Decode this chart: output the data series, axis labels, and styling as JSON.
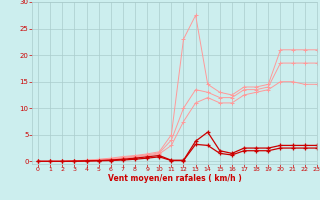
{
  "x_values": [
    0,
    1,
    2,
    3,
    4,
    5,
    6,
    7,
    8,
    9,
    10,
    11,
    12,
    13,
    14,
    15,
    16,
    17,
    18,
    19,
    20,
    21,
    22,
    23
  ],
  "line1": [
    0,
    0,
    0,
    0.1,
    0.2,
    0.4,
    0.6,
    0.9,
    1.1,
    1.4,
    1.8,
    5.0,
    23.0,
    27.5,
    14.5,
    13.0,
    12.5,
    14.0,
    14.0,
    14.5,
    21.0,
    21.0,
    21.0,
    21.0
  ],
  "line2": [
    0,
    0,
    0,
    0.1,
    0.2,
    0.3,
    0.5,
    0.7,
    1.0,
    1.2,
    1.6,
    4.0,
    10.0,
    13.5,
    13.0,
    12.0,
    12.0,
    13.5,
    13.5,
    14.0,
    18.5,
    18.5,
    18.5,
    18.5
  ],
  "line3": [
    0,
    0,
    0,
    0.1,
    0.15,
    0.25,
    0.4,
    0.6,
    0.85,
    1.1,
    1.4,
    3.0,
    7.5,
    11.0,
    12.0,
    11.0,
    11.0,
    12.5,
    13.0,
    13.5,
    15.0,
    15.0,
    14.5,
    14.5
  ],
  "line4": [
    0,
    0,
    0,
    0.05,
    0.1,
    0.15,
    0.25,
    0.4,
    0.6,
    0.85,
    1.1,
    0.2,
    0.2,
    3.8,
    5.5,
    2.0,
    1.5,
    2.5,
    2.5,
    2.5,
    3.0,
    3.0,
    3.0,
    3.0
  ],
  "line5": [
    0,
    0,
    0,
    0.0,
    0.05,
    0.1,
    0.15,
    0.25,
    0.4,
    0.6,
    0.85,
    0.15,
    0.15,
    3.2,
    3.0,
    1.5,
    1.2,
    2.0,
    2.0,
    2.0,
    2.5,
    2.5,
    2.5,
    2.5
  ],
  "color_light": "#FF9999",
  "color_dark": "#CC0000",
  "bg_color": "#CCEEEE",
  "grid_color": "#AACCCC",
  "xlabel": "Vent moyen/en rafales ( km/h )",
  "xlabel_color": "#CC0000",
  "tick_color": "#CC0000",
  "ylim": [
    -0.5,
    30
  ],
  "xlim": [
    -0.5,
    23
  ],
  "yticks": [
    0,
    5,
    10,
    15,
    20,
    25,
    30
  ],
  "xticks": [
    0,
    1,
    2,
    3,
    4,
    5,
    6,
    7,
    8,
    9,
    10,
    11,
    12,
    13,
    14,
    15,
    16,
    17,
    18,
    19,
    20,
    21,
    22,
    23
  ]
}
